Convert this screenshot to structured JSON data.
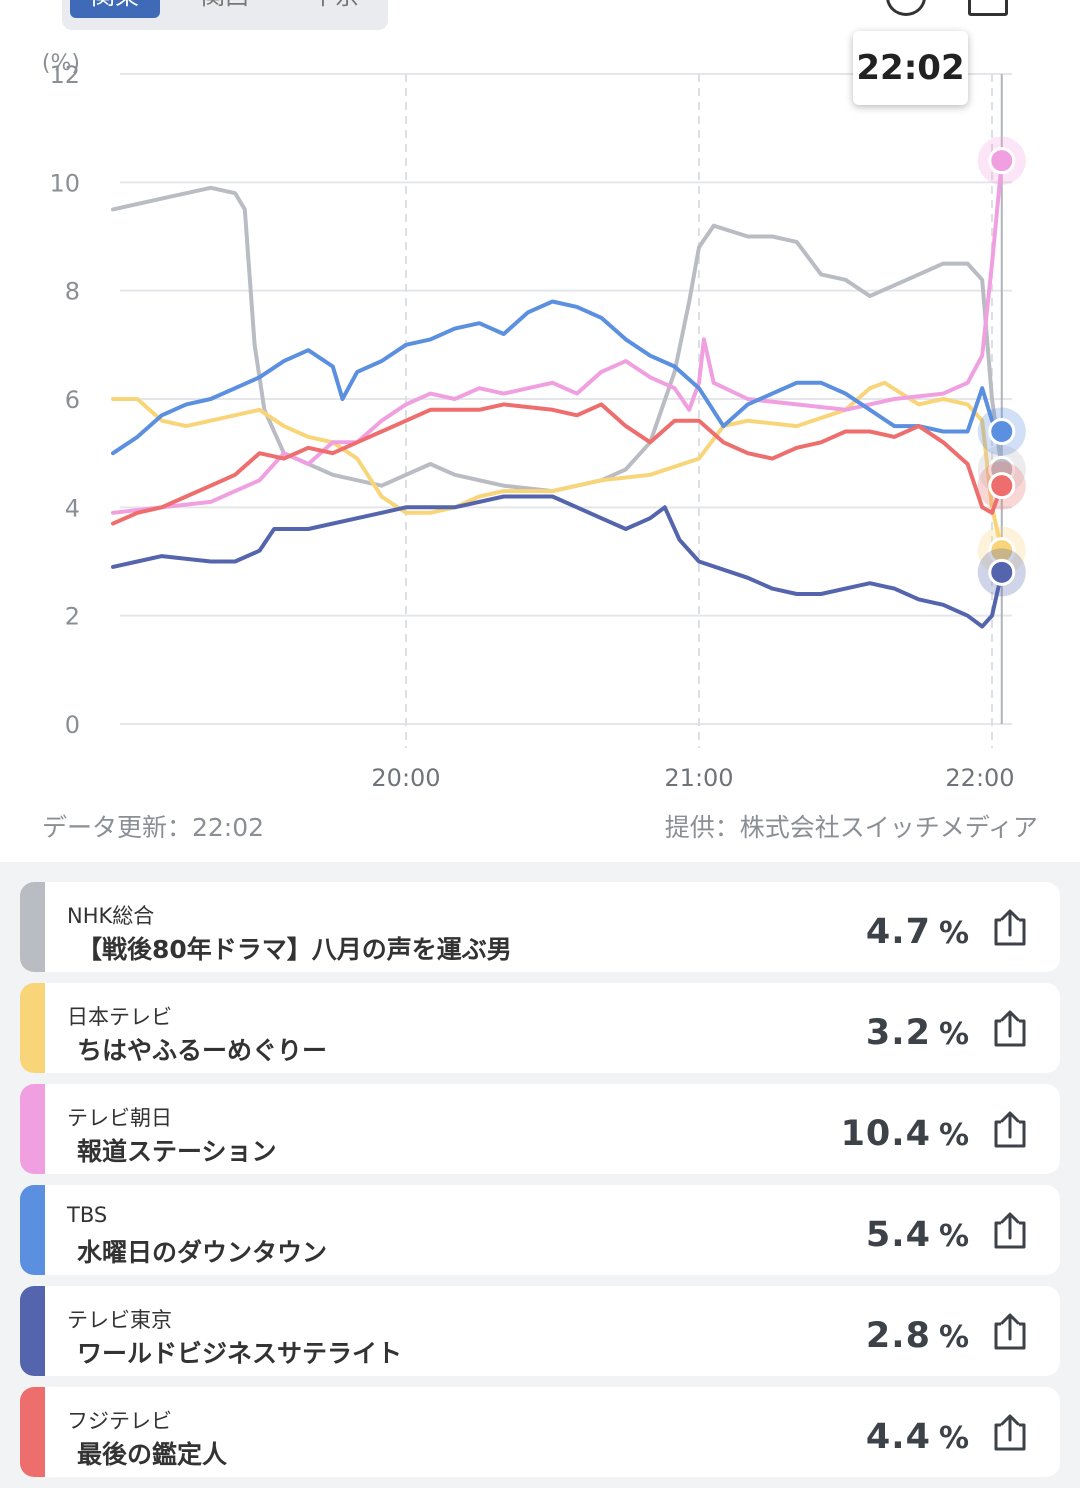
{
  "region_tabs": [
    {
      "label": "関東",
      "active": true
    },
    {
      "label": "関西",
      "active": false
    },
    {
      "label": "中京",
      "active": false
    }
  ],
  "tooltip_time": "22:02",
  "chart_data": {
    "type": "line",
    "ylabel": "(%)",
    "ylim": [
      0,
      12
    ],
    "y_ticks": [
      "0",
      "2",
      "4",
      "6",
      "8",
      "10",
      "12"
    ],
    "x_range": [
      "19:00",
      "22:02"
    ],
    "x_ticks": [
      "20:00",
      "21:00",
      "22:00"
    ],
    "grid": true,
    "cursor_time": "22:02",
    "series": [
      {
        "name": "NHK総合",
        "color": "#b9bcc2",
        "end_value": 4.7,
        "points": [
          [
            "19:00",
            9.5
          ],
          [
            "19:10",
            9.7
          ],
          [
            "19:20",
            9.9
          ],
          [
            "19:25",
            9.8
          ],
          [
            "19:27",
            9.5
          ],
          [
            "19:29",
            7.0
          ],
          [
            "19:31",
            5.8
          ],
          [
            "19:35",
            5.0
          ],
          [
            "19:45",
            4.6
          ],
          [
            "19:55",
            4.4
          ],
          [
            "20:00",
            4.6
          ],
          [
            "20:05",
            4.8
          ],
          [
            "20:10",
            4.6
          ],
          [
            "20:20",
            4.4
          ],
          [
            "20:30",
            4.3
          ],
          [
            "20:40",
            4.5
          ],
          [
            "20:45",
            4.7
          ],
          [
            "20:50",
            5.2
          ],
          [
            "20:55",
            6.5
          ],
          [
            "20:58",
            7.8
          ],
          [
            "21:00",
            8.8
          ],
          [
            "21:03",
            9.2
          ],
          [
            "21:10",
            9.0
          ],
          [
            "21:15",
            9.0
          ],
          [
            "21:20",
            8.9
          ],
          [
            "21:25",
            8.3
          ],
          [
            "21:30",
            8.2
          ],
          [
            "21:35",
            7.9
          ],
          [
            "21:40",
            8.1
          ],
          [
            "21:45",
            8.3
          ],
          [
            "21:50",
            8.5
          ],
          [
            "21:55",
            8.5
          ],
          [
            "21:58",
            8.2
          ],
          [
            "22:00",
            6.0
          ],
          [
            "22:02",
            4.7
          ]
        ]
      },
      {
        "name": "日本テレビ",
        "color": "#f9d57a",
        "end_value": 3.2,
        "points": [
          [
            "19:00",
            6.0
          ],
          [
            "19:05",
            6.0
          ],
          [
            "19:10",
            5.6
          ],
          [
            "19:15",
            5.5
          ],
          [
            "19:20",
            5.6
          ],
          [
            "19:30",
            5.8
          ],
          [
            "19:35",
            5.5
          ],
          [
            "19:40",
            5.3
          ],
          [
            "19:45",
            5.2
          ],
          [
            "19:50",
            4.9
          ],
          [
            "19:55",
            4.2
          ],
          [
            "20:00",
            3.9
          ],
          [
            "20:05",
            3.9
          ],
          [
            "20:10",
            4.0
          ],
          [
            "20:15",
            4.2
          ],
          [
            "20:20",
            4.3
          ],
          [
            "20:30",
            4.3
          ],
          [
            "20:40",
            4.5
          ],
          [
            "20:50",
            4.6
          ],
          [
            "21:00",
            4.9
          ],
          [
            "21:05",
            5.5
          ],
          [
            "21:10",
            5.6
          ],
          [
            "21:20",
            5.5
          ],
          [
            "21:30",
            5.8
          ],
          [
            "21:35",
            6.2
          ],
          [
            "21:38",
            6.3
          ],
          [
            "21:45",
            5.9
          ],
          [
            "21:50",
            6.0
          ],
          [
            "21:55",
            5.9
          ],
          [
            "21:58",
            5.6
          ],
          [
            "22:00",
            4.0
          ],
          [
            "22:02",
            3.2
          ]
        ]
      },
      {
        "name": "テレビ朝日",
        "color": "#f0a0e0",
        "end_value": 10.4,
        "points": [
          [
            "19:00",
            3.9
          ],
          [
            "19:10",
            4.0
          ],
          [
            "19:20",
            4.1
          ],
          [
            "19:25",
            4.3
          ],
          [
            "19:30",
            4.5
          ],
          [
            "19:35",
            5.0
          ],
          [
            "19:40",
            4.8
          ],
          [
            "19:45",
            5.2
          ],
          [
            "19:50",
            5.2
          ],
          [
            "19:55",
            5.6
          ],
          [
            "20:00",
            5.9
          ],
          [
            "20:05",
            6.1
          ],
          [
            "20:10",
            6.0
          ],
          [
            "20:15",
            6.2
          ],
          [
            "20:20",
            6.1
          ],
          [
            "20:25",
            6.2
          ],
          [
            "20:30",
            6.3
          ],
          [
            "20:35",
            6.1
          ],
          [
            "20:40",
            6.5
          ],
          [
            "20:45",
            6.7
          ],
          [
            "20:50",
            6.4
          ],
          [
            "20:55",
            6.2
          ],
          [
            "20:58",
            5.8
          ],
          [
            "21:00",
            6.3
          ],
          [
            "21:01",
            7.1
          ],
          [
            "21:03",
            6.3
          ],
          [
            "21:10",
            6.0
          ],
          [
            "21:20",
            5.9
          ],
          [
            "21:30",
            5.8
          ],
          [
            "21:40",
            6.0
          ],
          [
            "21:50",
            6.1
          ],
          [
            "21:55",
            6.3
          ],
          [
            "21:58",
            6.8
          ],
          [
            "22:00",
            8.5
          ],
          [
            "22:02",
            10.4
          ]
        ]
      },
      {
        "name": "TBS",
        "color": "#5b8fe0",
        "end_value": 5.4,
        "points": [
          [
            "19:00",
            5.0
          ],
          [
            "19:05",
            5.3
          ],
          [
            "19:10",
            5.7
          ],
          [
            "19:15",
            5.9
          ],
          [
            "19:20",
            6.0
          ],
          [
            "19:25",
            6.2
          ],
          [
            "19:30",
            6.4
          ],
          [
            "19:35",
            6.7
          ],
          [
            "19:40",
            6.9
          ],
          [
            "19:45",
            6.6
          ],
          [
            "19:47",
            6.0
          ],
          [
            "19:50",
            6.5
          ],
          [
            "19:55",
            6.7
          ],
          [
            "20:00",
            7.0
          ],
          [
            "20:05",
            7.1
          ],
          [
            "20:10",
            7.3
          ],
          [
            "20:15",
            7.4
          ],
          [
            "20:20",
            7.2
          ],
          [
            "20:25",
            7.6
          ],
          [
            "20:30",
            7.8
          ],
          [
            "20:35",
            7.7
          ],
          [
            "20:40",
            7.5
          ],
          [
            "20:45",
            7.1
          ],
          [
            "20:50",
            6.8
          ],
          [
            "20:55",
            6.6
          ],
          [
            "21:00",
            6.2
          ],
          [
            "21:05",
            5.5
          ],
          [
            "21:10",
            5.9
          ],
          [
            "21:15",
            6.1
          ],
          [
            "21:20",
            6.3
          ],
          [
            "21:25",
            6.3
          ],
          [
            "21:30",
            6.1
          ],
          [
            "21:35",
            5.8
          ],
          [
            "21:40",
            5.5
          ],
          [
            "21:45",
            5.5
          ],
          [
            "21:50",
            5.4
          ],
          [
            "21:55",
            5.4
          ],
          [
            "21:58",
            6.2
          ],
          [
            "22:00",
            5.6
          ],
          [
            "22:02",
            5.4
          ]
        ]
      },
      {
        "name": "テレビ東京",
        "color": "#5465ad",
        "end_value": 2.8,
        "points": [
          [
            "19:00",
            2.9
          ],
          [
            "19:05",
            3.0
          ],
          [
            "19:10",
            3.1
          ],
          [
            "19:20",
            3.0
          ],
          [
            "19:25",
            3.0
          ],
          [
            "19:30",
            3.2
          ],
          [
            "19:33",
            3.6
          ],
          [
            "19:40",
            3.6
          ],
          [
            "19:50",
            3.8
          ],
          [
            "19:55",
            3.9
          ],
          [
            "20:00",
            4.0
          ],
          [
            "20:10",
            4.0
          ],
          [
            "20:20",
            4.2
          ],
          [
            "20:30",
            4.2
          ],
          [
            "20:35",
            4.0
          ],
          [
            "20:40",
            3.8
          ],
          [
            "20:45",
            3.6
          ],
          [
            "20:50",
            3.8
          ],
          [
            "20:53",
            4.0
          ],
          [
            "20:56",
            3.4
          ],
          [
            "21:00",
            3.0
          ],
          [
            "21:10",
            2.7
          ],
          [
            "21:15",
            2.5
          ],
          [
            "21:20",
            2.4
          ],
          [
            "21:25",
            2.4
          ],
          [
            "21:30",
            2.5
          ],
          [
            "21:35",
            2.6
          ],
          [
            "21:40",
            2.5
          ],
          [
            "21:45",
            2.3
          ],
          [
            "21:50",
            2.2
          ],
          [
            "21:55",
            2.0
          ],
          [
            "21:58",
            1.8
          ],
          [
            "22:00",
            2.0
          ],
          [
            "22:02",
            2.8
          ]
        ]
      },
      {
        "name": "フジテレビ",
        "color": "#ee6e6e",
        "end_value": 4.4,
        "points": [
          [
            "19:00",
            3.7
          ],
          [
            "19:05",
            3.9
          ],
          [
            "19:10",
            4.0
          ],
          [
            "19:15",
            4.2
          ],
          [
            "19:20",
            4.4
          ],
          [
            "19:25",
            4.6
          ],
          [
            "19:30",
            5.0
          ],
          [
            "19:35",
            4.9
          ],
          [
            "19:40",
            5.1
          ],
          [
            "19:45",
            5.0
          ],
          [
            "19:50",
            5.2
          ],
          [
            "19:55",
            5.4
          ],
          [
            "20:00",
            5.6
          ],
          [
            "20:05",
            5.8
          ],
          [
            "20:10",
            5.8
          ],
          [
            "20:15",
            5.8
          ],
          [
            "20:20",
            5.9
          ],
          [
            "20:30",
            5.8
          ],
          [
            "20:35",
            5.7
          ],
          [
            "20:40",
            5.9
          ],
          [
            "20:45",
            5.5
          ],
          [
            "20:50",
            5.2
          ],
          [
            "20:55",
            5.6
          ],
          [
            "21:00",
            5.6
          ],
          [
            "21:05",
            5.2
          ],
          [
            "21:10",
            5.0
          ],
          [
            "21:15",
            4.9
          ],
          [
            "21:20",
            5.1
          ],
          [
            "21:25",
            5.2
          ],
          [
            "21:30",
            5.4
          ],
          [
            "21:35",
            5.4
          ],
          [
            "21:40",
            5.3
          ],
          [
            "21:45",
            5.5
          ],
          [
            "21:50",
            5.2
          ],
          [
            "21:55",
            4.8
          ],
          [
            "21:58",
            4.0
          ],
          [
            "22:00",
            3.9
          ],
          [
            "22:02",
            4.4
          ]
        ]
      }
    ]
  },
  "footer": {
    "updated": "データ更新：22:02",
    "provider": "提供：株式会社スイッチメディア"
  },
  "rows": [
    {
      "channel": "NHK総合",
      "program": "【戦後80年ドラマ】八月の声を運ぶ男",
      "rating": "4.7",
      "unit": "%",
      "color": "#b9bcc2"
    },
    {
      "channel": "日本テレビ",
      "program": "ちはやふるーめぐりー",
      "rating": "3.2",
      "unit": "%",
      "color": "#f9d57a"
    },
    {
      "channel": "テレビ朝日",
      "program": "報道ステーション",
      "rating": "10.4",
      "unit": "%",
      "color": "#f0a0e0"
    },
    {
      "channel": "TBS",
      "program": "水曜日のダウンタウン",
      "rating": "5.4",
      "unit": "%",
      "color": "#5b8fe0"
    },
    {
      "channel": "テレビ東京",
      "program": "ワールドビジネスサテライト",
      "rating": "2.8",
      "unit": "%",
      "color": "#5465ad"
    },
    {
      "channel": "フジテレビ",
      "program": "最後の鑑定人",
      "rating": "4.4",
      "unit": "%",
      "color": "#ee6e6e"
    }
  ],
  "icons": {
    "info": "info-icon",
    "share": "share-icon"
  }
}
